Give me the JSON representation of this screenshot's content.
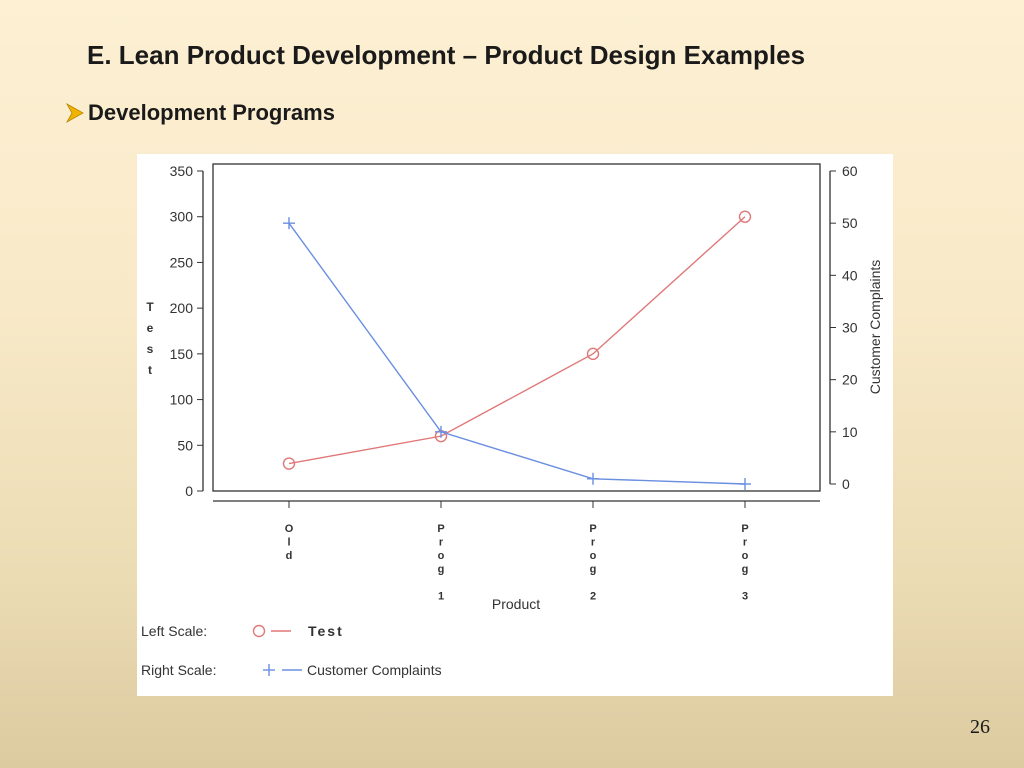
{
  "slide": {
    "title": "E. Lean Product Development – Product Design Examples",
    "bullet": "Development Programs",
    "page_number": "26",
    "bullet_color": "#f0b400"
  },
  "chart_data": {
    "type": "line",
    "categories": [
      "Old",
      "Prog 1",
      "Prog 2",
      "Prog 3"
    ],
    "xlabel": "Product",
    "ylabel_left": "Test",
    "ylabel_right": "Customer Complaints",
    "ylim_left": [
      0,
      350
    ],
    "yticks_left": [
      0,
      50,
      100,
      150,
      200,
      250,
      300,
      350
    ],
    "ylim_right": [
      0,
      60
    ],
    "yticks_right": [
      0,
      10,
      20,
      30,
      40,
      50,
      60
    ],
    "grid": false,
    "series": [
      {
        "name": "Test",
        "axis": "left",
        "values": [
          30,
          60,
          150,
          300
        ],
        "marker": "circle",
        "color": "#e07878"
      },
      {
        "name": "Customer Complaints",
        "axis": "right",
        "values": [
          50,
          10,
          1,
          0
        ],
        "marker": "plus",
        "color": "#6a8fe0"
      }
    ],
    "legend": [
      {
        "scale_label": "Left Scale:",
        "series_label": "Test"
      },
      {
        "scale_label": "Right Scale:",
        "series_label": "Customer Complaints"
      }
    ]
  }
}
